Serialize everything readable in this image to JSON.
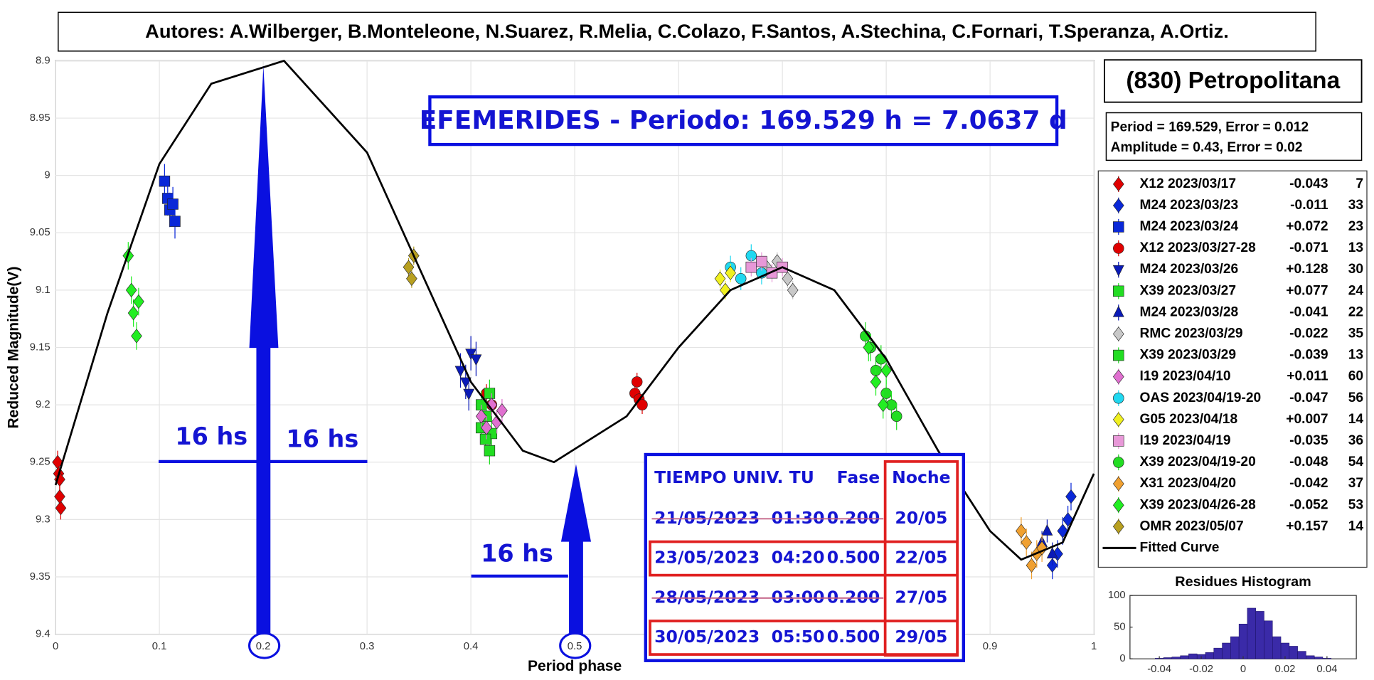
{
  "header": {
    "authors": "Autores: A.Wilberger, B.Monteleone, N.Suarez, R.Melia, C.Colazo, F.Santos, A.Stechina, C.Fornari, T.Speranza, A.Ortiz."
  },
  "object_name": "(830) Petropolitana",
  "fit_info": [
    "Period =  169.529, Error = 0.012",
    "Amplitude = 0.43, Error = 0.02"
  ],
  "ephemeris": {
    "title": "EFEMERIDES - Periodo: 169.529 h = 7.0637 d",
    "columns": [
      "TIEMPO UNIV. TU",
      "Fase",
      "Noche"
    ],
    "rows": [
      {
        "datetime": "21/05/2023  01:30",
        "phase": "0.200",
        "night": "20/05",
        "struck": true
      },
      {
        "datetime": "23/05/2023  04:20",
        "phase": "0.500",
        "night": "22/05",
        "struck": false
      },
      {
        "datetime": "28/05/2023  03:00",
        "phase": "0.200",
        "night": "27/05",
        "struck": true
      },
      {
        "datetime": "30/05/2023  05:50",
        "phase": "0.500",
        "night": "29/05",
        "struck": false
      }
    ]
  },
  "chart_data": [
    {
      "type": "scatter",
      "xlabel": "Period phase",
      "ylabel": "Reduced Magnitude(V)",
      "xlim": [
        0,
        1
      ],
      "ylim": [
        8.9,
        9.4
      ],
      "y_inverted": true,
      "grid": true,
      "xticks": [
        0,
        0.1,
        0.2,
        0.3,
        0.4,
        0.5,
        0.6,
        0.7,
        0.8,
        0.9,
        1
      ],
      "yticks": [
        8.9,
        8.95,
        9,
        9.05,
        9.1,
        9.15,
        9.2,
        9.25,
        9.3,
        9.35,
        9.4
      ],
      "annotations": [
        "16 hs",
        "16 hs",
        "16 hs"
      ],
      "series": [
        {
          "name": "X12 2023/03/17",
          "offset": "-0.043",
          "count": 7,
          "color": "#e00000",
          "marker": "diamond",
          "error": 0.01,
          "x": [
            0.002,
            0.003,
            0.004,
            0.005,
            0.004
          ],
          "y": [
            9.25,
            9.26,
            9.265,
            9.29,
            9.28
          ]
        },
        {
          "name": "M24 2023/03/23",
          "offset": "-0.011",
          "count": 33,
          "color": "#0a28d8",
          "marker": "diamond",
          "error": 0.012,
          "x": [
            0.96,
            0.965,
            0.97,
            0.975,
            0.978
          ],
          "y": [
            9.34,
            9.33,
            9.31,
            9.3,
            9.28
          ]
        },
        {
          "name": "M24 2023/03/24",
          "offset": "+0.072",
          "count": 23,
          "color": "#0a28d8",
          "marker": "square",
          "error": 0.015,
          "x": [
            0.105,
            0.108,
            0.11,
            0.113,
            0.115
          ],
          "y": [
            9.005,
            9.02,
            9.03,
            9.025,
            9.04
          ]
        },
        {
          "name": "X12 2023/03/27-28",
          "offset": "-0.071",
          "count": 13,
          "color": "#e00000",
          "marker": "circle",
          "error": 0.008,
          "x": [
            0.415,
            0.42,
            0.558,
            0.56,
            0.562,
            0.565
          ],
          "y": [
            9.19,
            9.2,
            9.19,
            9.18,
            9.195,
            9.2
          ]
        },
        {
          "name": "M24 2023/03/26",
          "offset": "+0.128",
          "count": 30,
          "color": "#0a1ab8",
          "marker": "tridown",
          "error": 0.015,
          "x": [
            0.39,
            0.395,
            0.398,
            0.4,
            0.405
          ],
          "y": [
            9.17,
            9.18,
            9.19,
            9.155,
            9.16
          ]
        },
        {
          "name": "X39 2023/03/27",
          "offset": "+0.077",
          "count": 24,
          "color": "#22dd22",
          "marker": "square",
          "error": 0.012,
          "x": [
            0.41,
            0.415,
            0.418,
            0.42
          ],
          "y": [
            9.2,
            9.21,
            9.19,
            9.225
          ]
        },
        {
          "name": "M24 2023/03/28",
          "offset": "-0.041",
          "count": 22,
          "color": "#0a1ab8",
          "marker": "triup",
          "error": 0.01,
          "x": [
            0.95,
            0.955,
            0.96
          ],
          "y": [
            9.32,
            9.31,
            9.33
          ]
        },
        {
          "name": "RMC 2023/03/29",
          "offset": "-0.022",
          "count": 35,
          "color": "#c8c8c8",
          "marker": "diamond",
          "error": 0.008,
          "x": [
            0.685,
            0.695,
            0.705,
            0.71
          ],
          "y": [
            9.08,
            9.075,
            9.09,
            9.1
          ]
        },
        {
          "name": "X39 2023/03/29",
          "offset": "-0.039",
          "count": 13,
          "color": "#22dd22",
          "marker": "square",
          "error": 0.012,
          "x": [
            0.41,
            0.414,
            0.418
          ],
          "y": [
            9.22,
            9.23,
            9.24
          ]
        },
        {
          "name": "I19 2023/04/10",
          "offset": "+0.011",
          "count": 60,
          "color": "#e070d0",
          "marker": "diamond",
          "error": 0.01,
          "x": [
            0.41,
            0.415,
            0.42,
            0.425,
            0.43
          ],
          "y": [
            9.21,
            9.22,
            9.2,
            9.215,
            9.205
          ]
        },
        {
          "name": "OAS 2023/04/19-20",
          "offset": "-0.047",
          "count": 56,
          "color": "#20d8f0",
          "marker": "circle",
          "error": 0.01,
          "x": [
            0.65,
            0.66,
            0.67,
            0.68
          ],
          "y": [
            9.08,
            9.09,
            9.07,
            9.085
          ]
        },
        {
          "name": "G05 2023/04/18",
          "offset": "+0.007",
          "count": 14,
          "color": "#f0f020",
          "marker": "diamond",
          "error": 0.008,
          "x": [
            0.64,
            0.645,
            0.65
          ],
          "y": [
            9.09,
            9.1,
            9.085
          ]
        },
        {
          "name": "I19 2023/04/19",
          "offset": "-0.035",
          "count": 36,
          "color": "#e898d8",
          "marker": "square",
          "error": 0.008,
          "x": [
            0.67,
            0.68,
            0.69,
            0.7
          ],
          "y": [
            9.08,
            9.075,
            9.085,
            9.08
          ]
        },
        {
          "name": "X39 2023/04/19-20",
          "offset": "-0.048",
          "count": 54,
          "color": "#22dd22",
          "marker": "circle",
          "error": 0.012,
          "x": [
            0.78,
            0.785,
            0.79,
            0.795,
            0.8,
            0.805,
            0.81
          ],
          "y": [
            9.14,
            9.15,
            9.17,
            9.16,
            9.19,
            9.2,
            9.21
          ]
        },
        {
          "name": "X31 2023/04/20",
          "offset": "-0.042",
          "count": 37,
          "color": "#f0a030",
          "marker": "diamond",
          "error": 0.012,
          "x": [
            0.93,
            0.935,
            0.94,
            0.945,
            0.95
          ],
          "y": [
            9.31,
            9.32,
            9.34,
            9.33,
            9.325
          ]
        },
        {
          "name": "X39 2023/04/26-28",
          "offset": "-0.052",
          "count": 53,
          "color": "#22ee22",
          "marker": "diamond",
          "error": 0.012,
          "x": [
            0.07,
            0.073,
            0.075,
            0.078,
            0.08,
            0.783,
            0.79,
            0.797,
            0.8
          ],
          "y": [
            9.07,
            9.1,
            9.12,
            9.14,
            9.11,
            9.15,
            9.18,
            9.2,
            9.17
          ]
        },
        {
          "name": "OMR 2023/05/07",
          "offset": "+0.157",
          "count": 14,
          "color": "#b8a020",
          "marker": "diamond",
          "error": 0.008,
          "x": [
            0.34,
            0.343,
            0.345
          ],
          "y": [
            9.08,
            9.09,
            9.07
          ]
        }
      ],
      "curve": {
        "name": "Fitted Curve",
        "color": "#000000",
        "x": [
          0,
          0.05,
          0.1,
          0.15,
          0.22,
          0.3,
          0.35,
          0.4,
          0.45,
          0.48,
          0.55,
          0.6,
          0.65,
          0.7,
          0.75,
          0.8,
          0.85,
          0.9,
          0.93,
          0.97,
          1
        ],
        "y": [
          9.27,
          9.12,
          8.99,
          8.92,
          8.9,
          8.98,
          9.08,
          9.18,
          9.24,
          9.25,
          9.21,
          9.15,
          9.1,
          9.08,
          9.1,
          9.16,
          9.24,
          9.31,
          9.335,
          9.32,
          9.26
        ]
      }
    },
    {
      "type": "histogram",
      "title": "Residues Histogram",
      "xlim": [
        -0.054,
        0.054
      ],
      "ylim": [
        0,
        100
      ],
      "xticks": [
        -0.04,
        -0.02,
        0,
        0.02,
        0.04
      ],
      "yticks": [
        0,
        50,
        100
      ],
      "color": "#3a2aa8",
      "bins": [
        -0.042,
        -0.038,
        -0.034,
        -0.03,
        -0.026,
        -0.022,
        -0.018,
        -0.014,
        -0.01,
        -0.006,
        -0.002,
        0.002,
        0.006,
        0.01,
        0.014,
        0.018,
        0.022,
        0.026,
        0.03,
        0.034,
        0.038,
        0.042
      ],
      "counts": [
        1,
        2,
        3,
        5,
        8,
        7,
        10,
        17,
        25,
        35,
        55,
        80,
        75,
        60,
        35,
        25,
        20,
        12,
        5,
        3,
        1
      ]
    }
  ]
}
